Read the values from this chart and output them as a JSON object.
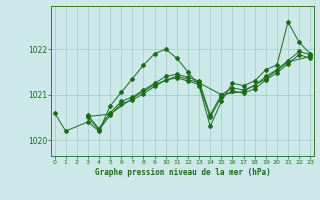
{
  "title": "Graphe pression niveau de la mer (hPa)",
  "bg_color": "#cce8e8",
  "grid_color": "#99cccc",
  "line_color": "#1a6b1a",
  "x_min": -0.3,
  "x_max": 23.3,
  "y_min": 1019.65,
  "y_max": 1022.95,
  "yticks": [
    1020,
    1021,
    1022
  ],
  "xticks": [
    0,
    1,
    2,
    3,
    4,
    5,
    6,
    7,
    8,
    9,
    10,
    11,
    12,
    13,
    14,
    15,
    16,
    17,
    18,
    19,
    20,
    21,
    22,
    23
  ],
  "series": [
    {
      "x": [
        0,
        1,
        3,
        4,
        5,
        6,
        7,
        8,
        9,
        10,
        11,
        12,
        13,
        14,
        15,
        16,
        17,
        18,
        19,
        20,
        21,
        22,
        23
      ],
      "y": [
        1020.6,
        1020.2,
        1020.4,
        1020.2,
        1020.75,
        1021.05,
        1021.35,
        1021.65,
        1021.9,
        1022.0,
        1021.8,
        1021.5,
        1021.2,
        1020.3,
        1020.85,
        1021.25,
        1021.2,
        1021.3,
        1021.55,
        1021.65,
        1022.6,
        1022.15,
        1021.9
      ]
    },
    {
      "x": [
        3,
        4,
        5,
        6,
        7,
        8,
        9,
        10,
        11,
        12,
        13,
        14,
        15,
        16,
        17,
        18,
        19,
        20,
        21,
        22,
        23
      ],
      "y": [
        1020.55,
        1020.25,
        1020.6,
        1020.85,
        1020.95,
        1021.1,
        1021.25,
        1021.4,
        1021.45,
        1021.38,
        1021.3,
        1020.55,
        1021.0,
        1021.15,
        1021.1,
        1021.2,
        1021.4,
        1021.55,
        1021.75,
        1021.95,
        1021.88
      ]
    },
    {
      "x": [
        3,
        4,
        5,
        6,
        7,
        8,
        9,
        10,
        11,
        12,
        13,
        14,
        15,
        16,
        17,
        18,
        19,
        20,
        21,
        22,
        23
      ],
      "y": [
        1020.5,
        1020.22,
        1020.55,
        1020.8,
        1020.88,
        1021.02,
        1021.18,
        1021.32,
        1021.37,
        1021.3,
        1021.22,
        1020.5,
        1020.95,
        1021.08,
        1021.03,
        1021.13,
        1021.32,
        1021.48,
        1021.68,
        1021.88,
        1021.8
      ]
    },
    {
      "x": [
        3,
        5,
        7,
        9,
        11,
        13,
        15,
        17,
        19,
        21,
        23
      ],
      "y": [
        1020.52,
        1020.57,
        1020.92,
        1021.22,
        1021.41,
        1021.26,
        1021.0,
        1021.07,
        1021.35,
        1021.72,
        1021.84
      ]
    }
  ]
}
